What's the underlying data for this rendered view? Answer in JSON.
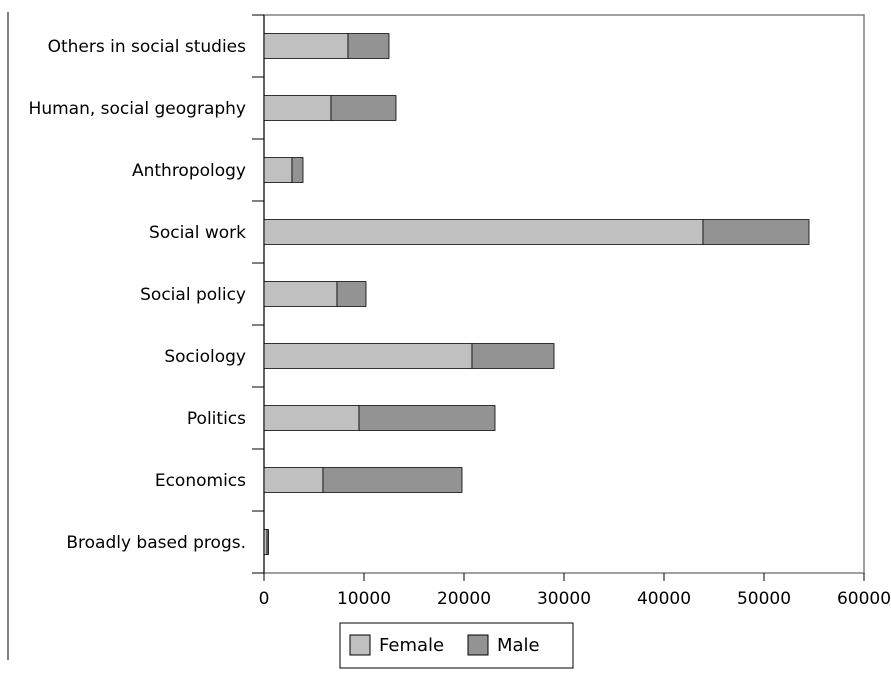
{
  "chart_data": {
    "type": "bar",
    "orientation": "horizontal",
    "stacked": true,
    "title": "",
    "xlabel": "",
    "ylabel": "",
    "categories": [
      "Broadly based progs.",
      "Economics",
      "Politics",
      "Sociology",
      "Social policy",
      "Social work",
      "Anthropology",
      "Human, social geography",
      "Others in social studies"
    ],
    "series": [
      {
        "name": "Female",
        "color": "#c0c0c0",
        "values": [
          300,
          5900,
          9500,
          20800,
          7300,
          43900,
          2800,
          6700,
          8400
        ]
      },
      {
        "name": "Male",
        "color": "#939393",
        "values": [
          150,
          13900,
          13600,
          8200,
          2900,
          10600,
          1100,
          6500,
          4100
        ]
      }
    ],
    "xlim": [
      0,
      60000
    ],
    "xticks": [
      "0",
      "10000",
      "20000",
      "30000",
      "40000",
      "50000",
      "60000"
    ],
    "grid": false,
    "legend": "bottom-center"
  }
}
